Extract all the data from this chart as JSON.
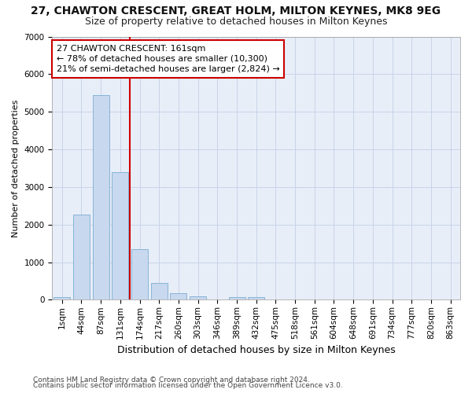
{
  "title": "27, CHAWTON CRESCENT, GREAT HOLM, MILTON KEYNES, MK8 9EG",
  "subtitle": "Size of property relative to detached houses in Milton Keynes",
  "xlabel": "Distribution of detached houses by size in Milton Keynes",
  "ylabel": "Number of detached properties",
  "footnote1": "Contains HM Land Registry data © Crown copyright and database right 2024.",
  "footnote2": "Contains public sector information licensed under the Open Government Licence v3.0.",
  "bar_color": "#c8d8ee",
  "bar_edgecolor": "#7aadd4",
  "vline_color": "#cc0000",
  "vline_x": 3.5,
  "annotation_line1": "27 CHAWTON CRESCENT: 161sqm",
  "annotation_line2": "← 78% of detached houses are smaller (10,300)",
  "annotation_line3": "21% of semi-detached houses are larger (2,824) →",
  "annotation_box_color": "#cc0000",
  "grid_color": "#c8d4e8",
  "plot_bg_color": "#e8eef8",
  "fig_bg_color": "#ffffff",
  "categories": [
    "1sqm",
    "44sqm",
    "87sqm",
    "131sqm",
    "174sqm",
    "217sqm",
    "260sqm",
    "303sqm",
    "346sqm",
    "389sqm",
    "432sqm",
    "475sqm",
    "518sqm",
    "561sqm",
    "604sqm",
    "648sqm",
    "691sqm",
    "734sqm",
    "777sqm",
    "820sqm",
    "863sqm"
  ],
  "values": [
    75,
    2270,
    5450,
    3400,
    1350,
    450,
    180,
    100,
    0,
    75,
    75,
    0,
    0,
    0,
    0,
    0,
    0,
    0,
    0,
    0,
    0
  ],
  "ylim": [
    0,
    7000
  ],
  "yticks": [
    0,
    1000,
    2000,
    3000,
    4000,
    5000,
    6000,
    7000
  ],
  "title_fontsize": 10,
  "subtitle_fontsize": 9,
  "xlabel_fontsize": 9,
  "ylabel_fontsize": 8,
  "tick_fontsize": 7.5,
  "footnote_fontsize": 6.5
}
